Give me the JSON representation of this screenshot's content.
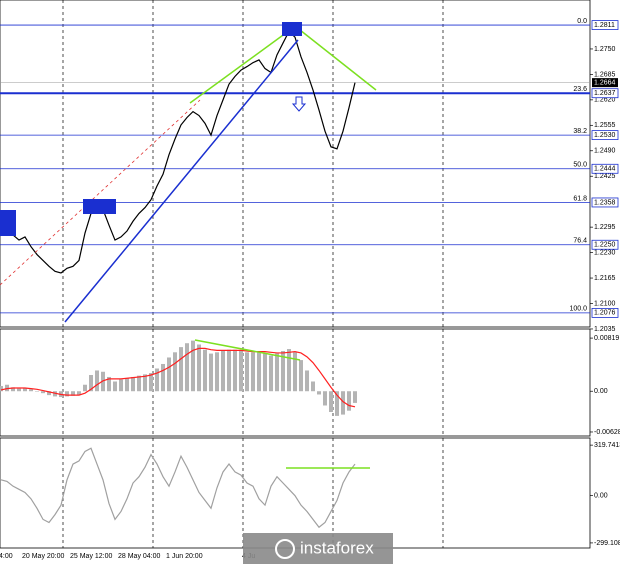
{
  "chart_data": [
    {
      "type": "line",
      "color": "#000000",
      "grid": true,
      "ylim": [
        1.204,
        1.2875
      ],
      "yticks": [
        {
          "value": 1.275,
          "label": "1.2750"
        },
        1.2685,
        {
          "value": 1.262,
          "label": "1.2620"
        },
        1.2555,
        {
          "value": 1.249,
          "label": "1.2490"
        },
        1.2425,
        1.2295,
        {
          "value": 1.223,
          "label": "1.2230"
        },
        1.2165,
        {
          "value": 1.21,
          "label": "1.2100"
        },
        1.2035
      ],
      "fib_levels": [
        {
          "ratio": "0.0",
          "price": 1.2811
        },
        {
          "ratio": "23.6",
          "price": 1.2637
        },
        {
          "ratio": "38.2",
          "price": {
            "value": 1.253,
            "label": "1.2530"
          }
        },
        {
          "ratio": "50.0",
          "price": 1.2444
        },
        {
          "ratio": "61.8",
          "price": 1.2358
        },
        {
          "ratio": "76.4",
          "price": {
            "value": 1.225,
            "label": "1.2250"
          }
        },
        {
          "ratio": "100.0",
          "price": 1.2076
        }
      ],
      "last_price": 1.2664,
      "x_labels": [
        "4:00",
        "20 May 20:00",
        "25 May 12:00",
        "28 May 04:00",
        "1 Jun 20:00",
        "4 Ju"
      ],
      "values": [
        1.23,
        1.229,
        1.2275,
        1.2262,
        1.227,
        1.2245,
        1.2225,
        1.221,
        1.2195,
        1.2182,
        1.2178,
        1.219,
        1.2195,
        1.221,
        1.228,
        1.233,
        1.2352,
        1.234,
        1.23,
        1.2262,
        1.227,
        1.2285,
        1.231,
        1.233,
        1.2345,
        1.2365,
        1.24,
        1.243,
        1.248,
        1.252,
        1.2556,
        1.2575,
        1.259,
        1.258,
        1.256,
        1.253,
        1.258,
        1.262,
        1.266,
        1.268,
        1.2696,
        1.2705,
        1.2715,
        1.2722,
        1.27,
        1.269,
        1.2735,
        1.2765,
        1.2795,
        1.278,
        1.273,
        1.269,
        1.2645,
        1.2594,
        1.254,
        1.25,
        1.2495,
        1.254,
        1.26,
        1.2664
      ]
    },
    {
      "type": "macd",
      "ylim": [
        -0.0069,
        0.00959
      ],
      "yticks": [
        0.00819,
        {
          "value": 0,
          "label": "0.00"
        },
        -0.00628
      ],
      "histogram": {
        "color": "#b4b4b4",
        "values": [
          0.0008,
          0.001,
          0.0006,
          0.0004,
          0.0005,
          0.0003,
          0.0,
          -0.0003,
          -0.0006,
          -0.0008,
          -0.0009,
          -0.0008,
          -0.0007,
          -0.0005,
          0.001,
          0.0025,
          0.0032,
          0.003,
          0.0022,
          0.0015,
          0.0018,
          0.002,
          0.0022,
          0.0024,
          0.0026,
          0.0028,
          0.0035,
          0.0042,
          0.0052,
          0.006,
          0.0068,
          0.0074,
          0.0078,
          0.0072,
          0.0064,
          0.0058,
          0.006,
          0.0062,
          0.0064,
          0.0064,
          0.0062,
          0.006,
          0.006,
          0.0062,
          0.0058,
          0.0055,
          0.0058,
          0.0062,
          0.0065,
          0.006,
          0.0048,
          0.0032,
          0.0015,
          -0.0005,
          -0.0022,
          -0.0032,
          -0.0038,
          -0.0036,
          -0.003,
          -0.0018
        ]
      },
      "signal": {
        "color": "#ff2020",
        "values": [
          0.0002,
          0.0004,
          0.0005,
          0.0005,
          0.0005,
          0.0004,
          0.0003,
          0.0001,
          -0.0001,
          -0.0003,
          -0.0005,
          -0.0006,
          -0.0006,
          -0.0006,
          -0.0003,
          0.0003,
          0.001,
          0.0016,
          0.0019,
          0.0019,
          0.0019,
          0.002,
          0.0021,
          0.0022,
          0.0023,
          0.0025,
          0.0028,
          0.0032,
          0.0037,
          0.0043,
          0.005,
          0.0057,
          0.0063,
          0.0066,
          0.0066,
          0.0064,
          0.0063,
          0.0063,
          0.0063,
          0.0063,
          0.0063,
          0.0062,
          0.0061,
          0.0061,
          0.0061,
          0.006,
          0.0059,
          0.0059,
          0.006,
          0.0061,
          0.0059,
          0.0053,
          0.0044,
          0.0032,
          0.0019,
          0.0006,
          -0.0006,
          -0.0016,
          -0.0022,
          -0.0024
        ]
      }
    },
    {
      "type": "line",
      "color": "#a0a0a0",
      "ylim": [
        -331.3,
        364.9
      ],
      "yticks": [
        319.7413,
        {
          "value": 0,
          "label": "0.00"
        },
        -299.108
      ],
      "values": [
        100,
        90,
        60,
        40,
        20,
        -20,
        -80,
        -150,
        -170,
        -120,
        -60,
        100,
        200,
        220,
        280,
        300,
        200,
        100,
        -50,
        -150,
        -100,
        -20,
        80,
        120,
        180,
        260,
        200,
        120,
        60,
        150,
        250,
        180,
        100,
        20,
        -30,
        -80,
        50,
        150,
        200,
        150,
        130,
        80,
        60,
        -20,
        -60,
        60,
        120,
        80,
        40,
        0,
        -60,
        -100,
        -150,
        -200,
        -170,
        -100,
        -30,
        80,
        150,
        200
      ]
    }
  ],
  "watermark": "instaforex"
}
